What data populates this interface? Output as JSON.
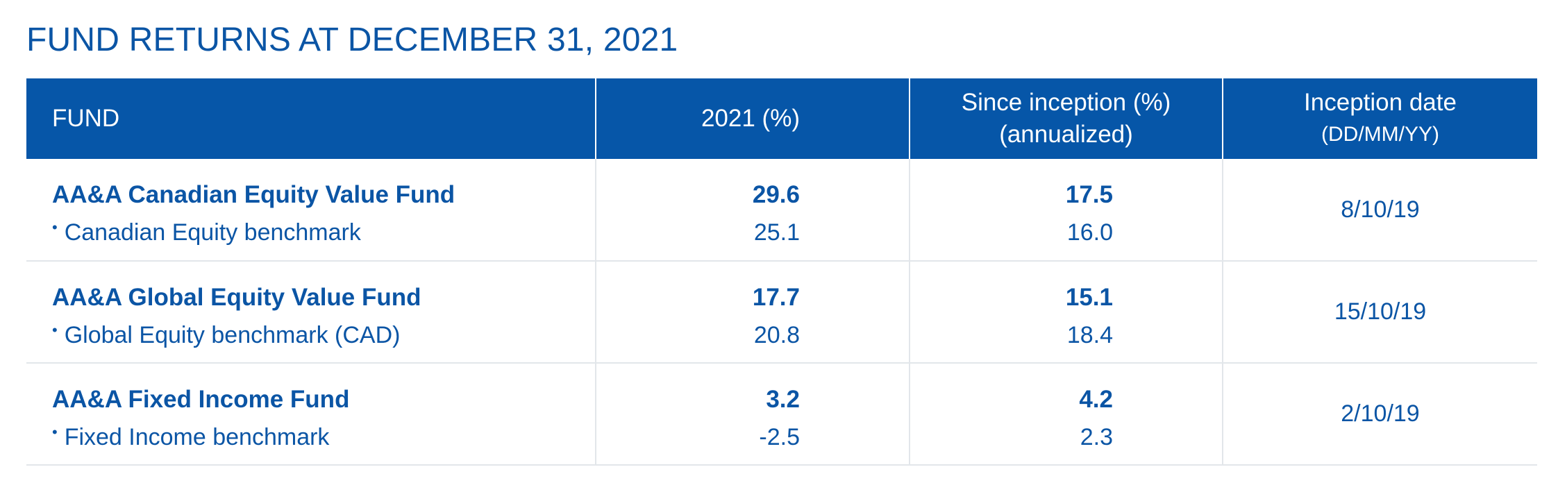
{
  "title": "FUND RETURNS AT DECEMBER 31, 2021",
  "header": {
    "fund": "FUND",
    "year_return": "2021 (%)",
    "since_inception_line1": "Since inception (%)",
    "since_inception_line2": "(annualized)",
    "inception_date_line1": "Inception date",
    "inception_date_line2": "(DD/MM/YY)"
  },
  "rows": [
    {
      "fund": "AA&A Canadian Equity Value Fund",
      "benchmark": "Canadian Equity benchmark",
      "fund_2021": "29.6",
      "bench_2021": "25.1",
      "fund_since": "17.5",
      "bench_since": "16.0",
      "inception_date": "8/10/19"
    },
    {
      "fund": "AA&A Global Equity Value Fund",
      "benchmark": "Global Equity benchmark (CAD)",
      "fund_2021": "17.7",
      "bench_2021": "20.8",
      "fund_since": "15.1",
      "bench_since": "18.4",
      "inception_date": "15/10/19"
    },
    {
      "fund": "AA&A Fixed Income Fund",
      "benchmark": "Fixed Income benchmark",
      "fund_2021": "3.2",
      "bench_2021": "-2.5",
      "fund_since": "4.2",
      "bench_since": "2.3",
      "inception_date": "2/10/19"
    }
  ],
  "colors": {
    "header_bg": "#0656a8",
    "text_blue": "#0b55a5",
    "divider": "#e2e6ea"
  }
}
